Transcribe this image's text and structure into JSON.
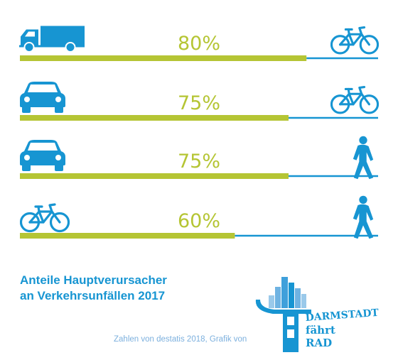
{
  "chart_data": {
    "type": "bar",
    "title": "Anteile Hauptverursacher an Verkehrsunfällen 2017",
    "xlim": [
      0,
      100
    ],
    "rows": [
      {
        "causer_icon": "truck-icon",
        "victim_icon": "bicycle-icon",
        "value": 80,
        "label": "80%"
      },
      {
        "causer_icon": "car-icon",
        "victim_icon": "bicycle-icon",
        "value": 75,
        "label": "75%"
      },
      {
        "causer_icon": "car-icon",
        "victim_icon": "pedestrian-icon",
        "value": 75,
        "label": "75%"
      },
      {
        "causer_icon": "bicycle-icon",
        "victim_icon": "pedestrian-icon",
        "value": 60,
        "label": "60%"
      }
    ],
    "colors": {
      "bar": "#b5c534",
      "track": "#1795d2",
      "icons": "#1795d2",
      "label": "#b5c534"
    }
  },
  "caption": {
    "line1": "Anteile Hauptverursacher",
    "line2": "an Verkehrsunfällen 2017"
  },
  "credit": "Zahlen von destatis 2018, Grafik von",
  "logo": {
    "name": "DARMSTADT fährt RAD",
    "line1": "DARMSTADT",
    "line2": "fährt",
    "line3": "RAD"
  }
}
